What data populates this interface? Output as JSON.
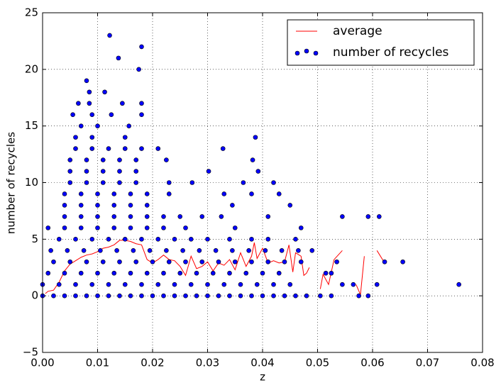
{
  "chart_data": {
    "type": "scatter",
    "xlabel": "z",
    "ylabel": "number of recycles",
    "xlim": [
      0,
      0.08
    ],
    "ylim": [
      -5,
      25
    ],
    "xticks": [
      {
        "value": 0,
        "label": "0.00"
      },
      {
        "value": 0.01,
        "label": "0.01"
      },
      {
        "value": 0.02,
        "label": "0.02"
      },
      {
        "value": 0.03,
        "label": "0.03"
      },
      {
        "value": 0.04,
        "label": "0.04"
      },
      {
        "value": 0.05,
        "label": "0.05"
      },
      {
        "value": 0.06,
        "label": "0.06"
      },
      {
        "value": 0.07,
        "label": "0.07"
      },
      {
        "value": 0.08,
        "label": "0.08"
      }
    ],
    "yticks": [
      {
        "value": -5,
        "label": "−5"
      },
      0,
      5,
      10,
      15,
      20,
      25
    ],
    "grid": true,
    "legend": "upper right",
    "series": [
      {
        "name": "average",
        "type": "line",
        "color": "#ff0000",
        "x": [
          0.0005,
          0.001,
          0.002,
          0.003,
          0.004,
          0.005,
          0.006,
          0.007,
          0.008,
          0.009,
          0.01,
          0.011,
          0.012,
          0.013,
          0.014,
          0.015,
          0.016,
          0.017,
          0.018,
          0.019,
          0.02,
          0.021,
          0.022,
          0.023,
          0.024,
          0.025,
          0.026,
          0.027,
          0.028,
          0.029,
          0.03,
          0.031,
          0.032,
          0.033,
          0.034,
          0.035,
          0.036,
          0.037,
          0.038,
          0.0385,
          0.039,
          0.04,
          0.041,
          0.042,
          0.043,
          0.044,
          0.0448,
          0.0455,
          0.046,
          0.047,
          0.0475,
          0.048,
          0.0485,
          null,
          0.0505,
          0.051,
          0.052,
          0.053,
          0.0545,
          null,
          0.057,
          0.0578,
          0.0585,
          null,
          0.0608,
          0.0622
        ],
        "values": [
          0.2,
          0.4,
          0.5,
          1.2,
          2.2,
          2.8,
          3.1,
          3.4,
          3.6,
          3.7,
          3.9,
          4.2,
          4.3,
          4.5,
          4.9,
          4.9,
          4.8,
          4.6,
          4.5,
          3.2,
          2.9,
          3.2,
          3.6,
          3.2,
          3.1,
          2.6,
          1.8,
          3.5,
          2.4,
          2.6,
          3.0,
          2.2,
          2.9,
          2.7,
          3.2,
          2.3,
          3.8,
          2.6,
          3.5,
          4.7,
          3.3,
          4.2,
          2.9,
          3.1,
          2.9,
          3.0,
          4.5,
          2.1,
          3.8,
          3.5,
          1.8,
          2.0,
          2.5,
          null,
          0.6,
          1.9,
          1.0,
          3.2,
          4.0,
          null,
          1.0,
          0.1,
          3.5,
          null,
          4.0,
          2.9
        ]
      },
      {
        "name": "number of recycles",
        "type": "scatter",
        "color": "#0000ff",
        "x": [
          0.0,
          0.002,
          0.004,
          0.006,
          0.008,
          0.01,
          0.012,
          0.014,
          0.016,
          0.018,
          0.02,
          0.022,
          0.024,
          0.026,
          0.028,
          0.03,
          0.032,
          0.034,
          0.036,
          0.038,
          0.04,
          0.042,
          0.044,
          0.046,
          0.048,
          0.0505,
          0.0525,
          0.0575,
          0.0592,
          0.0,
          0.003,
          0.006,
          0.009,
          0.012,
          0.015,
          0.018,
          0.021,
          0.024,
          0.027,
          0.03,
          0.033,
          0.036,
          0.039,
          0.042,
          0.045,
          0.0545,
          0.0565,
          0.0608,
          0.0757,
          0.001,
          0.004,
          0.007,
          0.01,
          0.013,
          0.016,
          0.019,
          0.022,
          0.025,
          0.028,
          0.031,
          0.034,
          0.037,
          0.04,
          0.043,
          0.0515,
          0.0525,
          0.002,
          0.005,
          0.008,
          0.011,
          0.014,
          0.017,
          0.02,
          0.023,
          0.026,
          0.029,
          0.032,
          0.035,
          0.038,
          0.041,
          0.044,
          0.047,
          0.0535,
          0.0622,
          0.0655,
          0.0015,
          0.0045,
          0.0075,
          0.0105,
          0.0135,
          0.0165,
          0.0195,
          0.0225,
          0.0255,
          0.0285,
          0.0315,
          0.0345,
          0.0375,
          0.0405,
          0.0435,
          0.0465,
          0.049,
          0.003,
          0.006,
          0.009,
          0.012,
          0.015,
          0.018,
          0.021,
          0.024,
          0.027,
          0.03,
          0.034,
          0.038,
          0.041,
          0.046,
          0.001,
          0.004,
          0.007,
          0.01,
          0.013,
          0.016,
          0.019,
          0.022,
          0.026,
          0.035,
          0.047,
          0.004,
          0.007,
          0.01,
          0.013,
          0.016,
          0.019,
          0.022,
          0.025,
          0.029,
          0.0325,
          0.041,
          0.0545,
          0.0592,
          0.0612,
          0.004,
          0.007,
          0.01,
          0.013,
          0.016,
          0.019,
          0.0345,
          0.045,
          0.004,
          0.007,
          0.01,
          0.013,
          0.016,
          0.019,
          0.023,
          0.033,
          0.038,
          0.043,
          0.005,
          0.008,
          0.011,
          0.014,
          0.017,
          0.023,
          0.0272,
          0.0365,
          0.042,
          0.005,
          0.008,
          0.011,
          0.014,
          0.017,
          0.0302,
          0.0392,
          0.005,
          0.008,
          0.011,
          0.014,
          0.017,
          0.0225,
          0.0382,
          0.006,
          0.009,
          0.012,
          0.015,
          0.018,
          0.021,
          0.0328,
          0.006,
          0.009,
          0.015,
          0.0387,
          0.007,
          0.01,
          0.0157,
          0.0055,
          0.009,
          0.0125,
          0.018,
          0.0065,
          0.0085,
          0.0145,
          0.018,
          0.0085,
          0.0113,
          0.008,
          0.0175,
          0.0138,
          0.018,
          0.0122
        ],
        "values": [
          0,
          0,
          0,
          0,
          0,
          0,
          0,
          0,
          0,
          0,
          0,
          0,
          0,
          0,
          0,
          0,
          0,
          0,
          0,
          0,
          0,
          0,
          0,
          0,
          0,
          0,
          0,
          0,
          0,
          1,
          1,
          1,
          1,
          1,
          1,
          1,
          1,
          1,
          1,
          1,
          1,
          1,
          1,
          1,
          1,
          1,
          1,
          1,
          1,
          2,
          2,
          2,
          2,
          2,
          2,
          2,
          2,
          2,
          2,
          2,
          2,
          2,
          2,
          2,
          2,
          2,
          3,
          3,
          3,
          3,
          3,
          3,
          3,
          3,
          3,
          3,
          3,
          3,
          3,
          3,
          3,
          3,
          3,
          3,
          3,
          4,
          4,
          4,
          4,
          4,
          4,
          4,
          4,
          4,
          4,
          4,
          4,
          4,
          4,
          4,
          4,
          4,
          5,
          5,
          5,
          5,
          5,
          5,
          5,
          5,
          5,
          5,
          5,
          5,
          5,
          5,
          6,
          6,
          6,
          6,
          6,
          6,
          6,
          6,
          6,
          6,
          6,
          7,
          7,
          7,
          7,
          7,
          7,
          7,
          7,
          7,
          7,
          7,
          7,
          7,
          7,
          8,
          8,
          8,
          8,
          8,
          8,
          8,
          8,
          9,
          9,
          9,
          9,
          9,
          9,
          9,
          9,
          9,
          9,
          10,
          10,
          10,
          10,
          10,
          10,
          10,
          10,
          10,
          11,
          11,
          11,
          11,
          11,
          11,
          11,
          12,
          12,
          12,
          12,
          12,
          12,
          12,
          13,
          13,
          13,
          13,
          13,
          13,
          13,
          14,
          14,
          14,
          14,
          15,
          15,
          15,
          16,
          16,
          16,
          16,
          17,
          17,
          17,
          17,
          18,
          18,
          19,
          20,
          21,
          22,
          23
        ]
      }
    ]
  }
}
